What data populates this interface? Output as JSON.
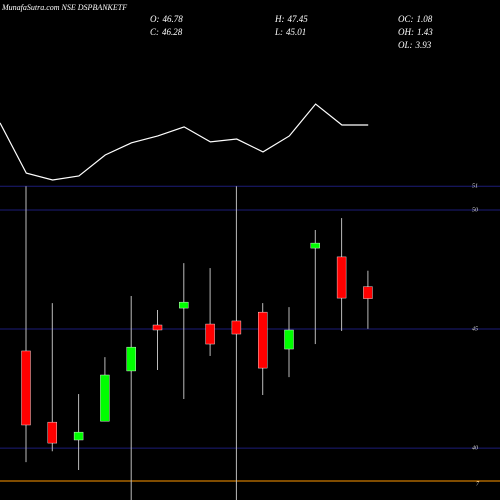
{
  "chart_data": {
    "type": "candlestick",
    "title": "MunafaSutra.com NSE DSPBANKETF",
    "stats": [
      {
        "label": "O:",
        "value": 46.78
      },
      {
        "label": "C:",
        "value": 46.28
      },
      {
        "label": "H:",
        "value": 47.45
      },
      {
        "label": "L:",
        "value": 45.01
      },
      {
        "label": "OC:",
        "value": 1.08
      },
      {
        "label": "OH:",
        "value": 1.43
      },
      {
        "label": "OL:",
        "value": 3.93
      }
    ],
    "ylim": [
      37.82,
      58.82
    ],
    "yticks": [
      51,
      50,
      45,
      40
    ],
    "marker_label": "7",
    "up_color": "#00ff00",
    "down_color": "#ff0000",
    "grid_color": "#1c1c78",
    "line": {
      "color": "#ffffff",
      "values": [
        53.66,
        51.55,
        51.26,
        51.43,
        52.31,
        52.82,
        53.11,
        53.49,
        52.86,
        52.98,
        52.44,
        53.11,
        54.45,
        53.57,
        53.57
      ]
    },
    "candles": [
      {
        "open": 44.08,
        "high": 51.0,
        "low": 39.41,
        "close": 40.97
      },
      {
        "open": 41.09,
        "high": 46.09,
        "low": 39.87,
        "close": 40.21
      },
      {
        "open": 40.34,
        "high": 42.27,
        "low": 39.08,
        "close": 40.67
      },
      {
        "open": 41.13,
        "high": 43.82,
        "low": 41.13,
        "close": 43.07
      },
      {
        "open": 43.24,
        "high": 46.39,
        "low": 37.82,
        "close": 44.24
      },
      {
        "open": 45.17,
        "high": 45.8,
        "low": 43.28,
        "close": 44.96
      },
      {
        "open": 45.88,
        "high": 47.77,
        "low": 42.06,
        "close": 46.13
      },
      {
        "open": 45.21,
        "high": 47.56,
        "low": 43.87,
        "close": 44.37
      },
      {
        "open": 45.34,
        "high": 51.0,
        "low": 37.82,
        "close": 44.79
      },
      {
        "open": 45.71,
        "high": 46.09,
        "low": 42.23,
        "close": 43.36
      },
      {
        "open": 44.16,
        "high": 45.92,
        "low": 42.98,
        "close": 44.96
      },
      {
        "open": 48.4,
        "high": 49.16,
        "low": 44.37,
        "close": 48.61
      },
      {
        "open": 48.03,
        "high": 49.66,
        "low": 44.92,
        "close": 46.3
      },
      {
        "open": 46.78,
        "high": 47.45,
        "low": 45.01,
        "close": 46.28
      }
    ]
  }
}
